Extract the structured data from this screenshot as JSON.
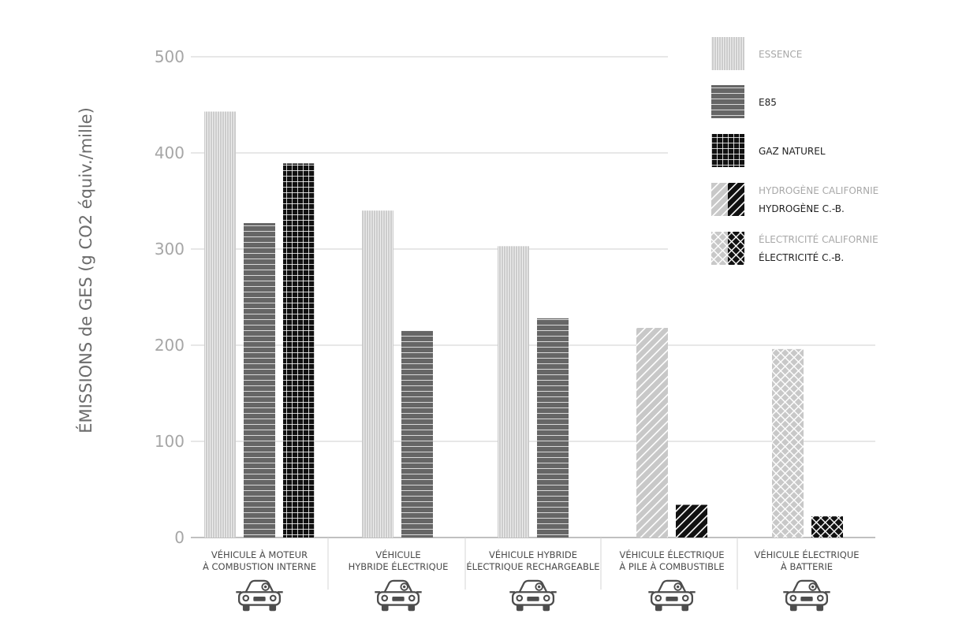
{
  "chart_data": {
    "type": "bar",
    "ylabel": "ÉMISSIONS de GES (g CO2 équiv./mille)",
    "ylim": [
      0,
      500
    ],
    "yticks": [
      0,
      100,
      200,
      300,
      400,
      500
    ],
    "grid": true,
    "legend_position": "top-right",
    "categories": [
      {
        "line1": "VÉHICULE À MOTEUR",
        "line2": "À COMBUSTION INTERNE",
        "icon": "car-icon"
      },
      {
        "line1": "VÉHICULE",
        "line2": "HYBRIDE ÉLECTRIQUE",
        "icon": "car-icon"
      },
      {
        "line1": "VÉHICULE HYBRIDE",
        "line2": "ÉLECTRIQUE RECHARGEABLE",
        "icon": "car-icon"
      },
      {
        "line1": "VÉHICULE ÉLECTRIQUE",
        "line2": "À PILE À COMBUSTIBLE",
        "icon": "car-icon"
      },
      {
        "line1": "VÉHICULE ÉLECTRIQUE",
        "line2": "À BATTERIE",
        "icon": "car-icon"
      }
    ],
    "series": [
      {
        "name": "ESSENCE",
        "values": [
          443,
          340,
          303,
          null,
          null
        ]
      },
      {
        "name": "E85",
        "values": [
          327,
          215,
          228,
          null,
          null
        ]
      },
      {
        "name": "GAZ NATUREL",
        "values": [
          389,
          null,
          null,
          null,
          null
        ]
      },
      {
        "name": "HYDROGÈNE CALIFORNIE",
        "values": [
          null,
          null,
          null,
          218,
          null
        ]
      },
      {
        "name": "HYDROGÈNE C.-B.",
        "values": [
          null,
          null,
          null,
          34,
          null
        ]
      },
      {
        "name": "ÉLECTRICITÉ CALIFORNIE",
        "values": [
          null,
          null,
          null,
          null,
          196
        ]
      },
      {
        "name": "ÉLECTRICITÉ C.-B.",
        "values": [
          null,
          null,
          null,
          null,
          22
        ]
      }
    ],
    "legend": [
      {
        "labels": [
          "ESSENCE"
        ],
        "swatch": "vertical-stripes-light"
      },
      {
        "labels": [
          "E85"
        ],
        "swatch": "horizontal-stripes-dark"
      },
      {
        "labels": [
          "GAZ NATUREL"
        ],
        "swatch": "grid-black"
      },
      {
        "labels": [
          "HYDROGÈNE CALIFORNIE",
          "HYDROGÈNE C.-B."
        ],
        "swatch": "diagonal-split"
      },
      {
        "labels": [
          "ÉLECTRICITÉ CALIFORNIE",
          "ÉLECTRICITÉ C.-B."
        ],
        "swatch": "crosshatch-split"
      }
    ],
    "colors": {
      "essence": "#cccccc",
      "e85": "#666666",
      "natural_gas": "#111111",
      "california": "#c8c8c8",
      "bc": "#111111",
      "grid": "#cfcfcf",
      "tick": "#a6a6a6"
    }
  }
}
